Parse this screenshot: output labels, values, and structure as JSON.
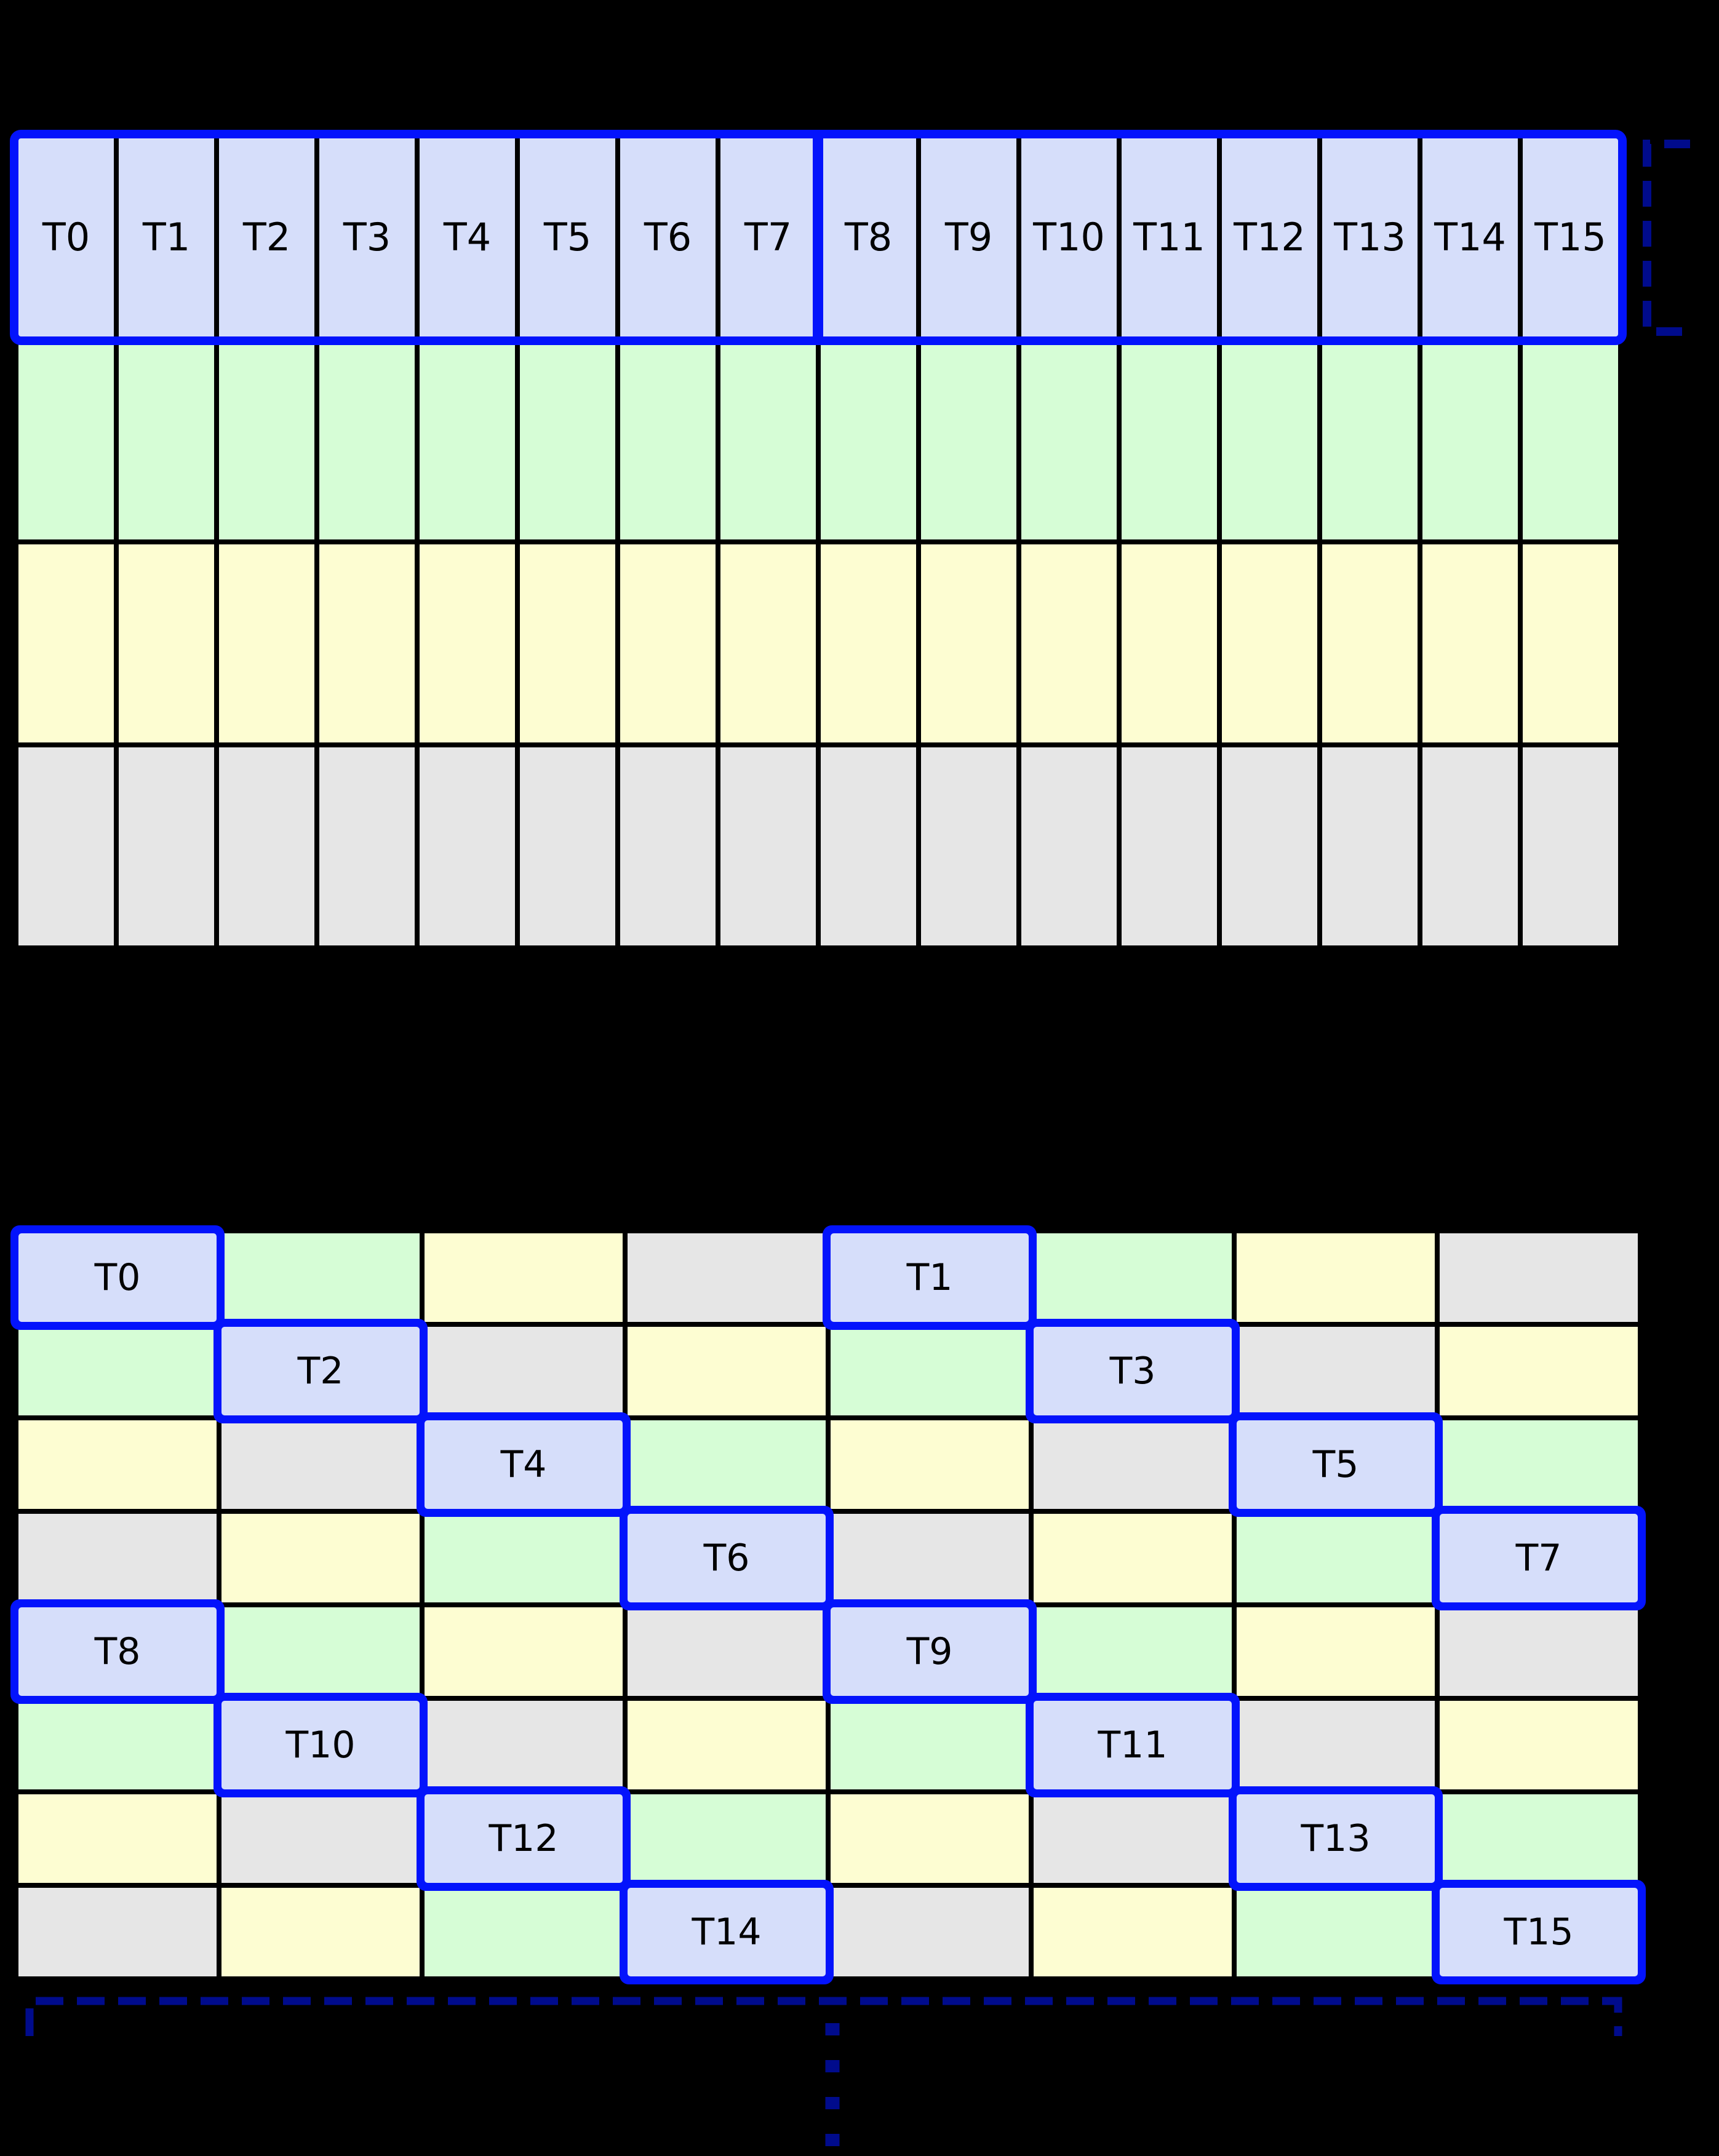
{
  "diagram": {
    "background": "#000000",
    "palette": {
      "lavender": "#d6defa",
      "green": "#d6fdd6",
      "yellow": "#fdfdd2",
      "gray": "#e6e6e6",
      "highlight_blue": "#0313fc",
      "bracket_navy": "#000b8c",
      "label_color": "#000000"
    },
    "top_grid": {
      "columns": 16,
      "rows": [
        {
          "color": "lavender",
          "labels": [
            "T0",
            "T1",
            "T2",
            "T3",
            "T4",
            "T5",
            "T6",
            "T7",
            "T8",
            "T9",
            "T10",
            "T11",
            "T12",
            "T13",
            "T14",
            "T15"
          ]
        },
        {
          "color": "green",
          "labels": []
        },
        {
          "color": "yellow",
          "labels": []
        },
        {
          "color": "gray",
          "labels": []
        }
      ],
      "half_divider_after_column": 8
    },
    "bottom_grid": {
      "columns": 8,
      "rows": 8,
      "cell_colors": [
        [
          "lavender",
          "green",
          "yellow",
          "gray",
          "lavender",
          "green",
          "yellow",
          "gray"
        ],
        [
          "green",
          "lavender",
          "gray",
          "yellow",
          "green",
          "lavender",
          "gray",
          "yellow"
        ],
        [
          "yellow",
          "gray",
          "lavender",
          "green",
          "yellow",
          "gray",
          "lavender",
          "green"
        ],
        [
          "gray",
          "yellow",
          "green",
          "lavender",
          "gray",
          "yellow",
          "green",
          "lavender"
        ],
        [
          "lavender",
          "green",
          "yellow",
          "gray",
          "lavender",
          "green",
          "yellow",
          "gray"
        ],
        [
          "green",
          "lavender",
          "gray",
          "yellow",
          "green",
          "lavender",
          "gray",
          "yellow"
        ],
        [
          "yellow",
          "gray",
          "lavender",
          "green",
          "yellow",
          "gray",
          "lavender",
          "green"
        ],
        [
          "gray",
          "yellow",
          "green",
          "lavender",
          "gray",
          "yellow",
          "green",
          "lavender"
        ]
      ],
      "cell_labels": [
        [
          "T0",
          "",
          "",
          "",
          "T1",
          "",
          "",
          ""
        ],
        [
          "",
          "T2",
          "",
          "",
          "",
          "T3",
          "",
          ""
        ],
        [
          "",
          "",
          "T4",
          "",
          "",
          "",
          "T5",
          ""
        ],
        [
          "",
          "",
          "",
          "T6",
          "",
          "",
          "",
          "T7"
        ],
        [
          "T8",
          "",
          "",
          "",
          "T9",
          "",
          "",
          ""
        ],
        [
          "",
          "T10",
          "",
          "",
          "",
          "T11",
          "",
          ""
        ],
        [
          "",
          "",
          "T12",
          "",
          "",
          "",
          "T13",
          ""
        ],
        [
          "",
          "",
          "",
          "T14",
          "",
          "",
          "",
          "T15"
        ]
      ]
    }
  }
}
